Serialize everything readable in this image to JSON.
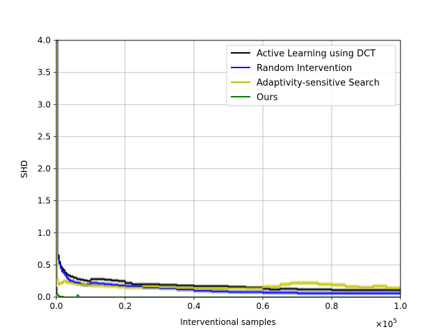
{
  "chart_data": {
    "type": "line",
    "title": "",
    "xlabel": "Interventional samples",
    "ylabel": "SHD",
    "x_offset_label": "×10",
    "x_offset_exponent": "5",
    "xlim": [
      0,
      1.0
    ],
    "ylim": [
      0,
      4.0
    ],
    "x_ticks": [
      "0.0",
      "0.2",
      "0.4",
      "0.6",
      "0.8",
      "1.0"
    ],
    "y_ticks": [
      "0.0",
      "0.5",
      "1.0",
      "1.5",
      "2.0",
      "2.5",
      "3.0",
      "3.5",
      "4.0"
    ],
    "grid": true,
    "legend_position": "top-right",
    "series": [
      {
        "name": "Active Learning using DCT",
        "color": "#000000",
        "points": [
          [
            0.0,
            4.0
          ],
          [
            0.002,
            4.0
          ],
          [
            0.004,
            0.65
          ],
          [
            0.008,
            0.55
          ],
          [
            0.012,
            0.48
          ],
          [
            0.016,
            0.45
          ],
          [
            0.02,
            0.42
          ],
          [
            0.025,
            0.38
          ],
          [
            0.03,
            0.35
          ],
          [
            0.035,
            0.34
          ],
          [
            0.04,
            0.32
          ],
          [
            0.05,
            0.3
          ],
          [
            0.06,
            0.28
          ],
          [
            0.07,
            0.27
          ],
          [
            0.08,
            0.26
          ],
          [
            0.09,
            0.25
          ],
          [
            0.1,
            0.28
          ],
          [
            0.12,
            0.28
          ],
          [
            0.14,
            0.27
          ],
          [
            0.16,
            0.26
          ],
          [
            0.18,
            0.25
          ],
          [
            0.2,
            0.22
          ],
          [
            0.22,
            0.2
          ],
          [
            0.25,
            0.2
          ],
          [
            0.3,
            0.19
          ],
          [
            0.35,
            0.18
          ],
          [
            0.4,
            0.17
          ],
          [
            0.45,
            0.17
          ],
          [
            0.5,
            0.16
          ],
          [
            0.55,
            0.15
          ],
          [
            0.6,
            0.13
          ],
          [
            0.62,
            0.12
          ],
          [
            0.65,
            0.13
          ],
          [
            0.7,
            0.12
          ],
          [
            0.75,
            0.12
          ],
          [
            0.8,
            0.11
          ],
          [
            0.9,
            0.11
          ],
          [
            1.0,
            0.11
          ]
        ],
        "band": 0.025
      },
      {
        "name": "Random Intervention",
        "color": "#0000ff",
        "points": [
          [
            0.0,
            4.0
          ],
          [
            0.002,
            4.0
          ],
          [
            0.004,
            0.6
          ],
          [
            0.008,
            0.52
          ],
          [
            0.012,
            0.45
          ],
          [
            0.016,
            0.4
          ],
          [
            0.02,
            0.38
          ],
          [
            0.025,
            0.34
          ],
          [
            0.03,
            0.3
          ],
          [
            0.035,
            0.27
          ],
          [
            0.04,
            0.25
          ],
          [
            0.05,
            0.23
          ],
          [
            0.06,
            0.22
          ],
          [
            0.07,
            0.2
          ],
          [
            0.08,
            0.19
          ],
          [
            0.09,
            0.2
          ],
          [
            0.1,
            0.22
          ],
          [
            0.12,
            0.21
          ],
          [
            0.14,
            0.2
          ],
          [
            0.16,
            0.19
          ],
          [
            0.18,
            0.18
          ],
          [
            0.2,
            0.17
          ],
          [
            0.25,
            0.15
          ],
          [
            0.3,
            0.14
          ],
          [
            0.35,
            0.12
          ],
          [
            0.4,
            0.1
          ],
          [
            0.45,
            0.09
          ],
          [
            0.5,
            0.08
          ],
          [
            0.55,
            0.08
          ],
          [
            0.6,
            0.07
          ],
          [
            0.65,
            0.07
          ],
          [
            0.7,
            0.06
          ],
          [
            0.8,
            0.06
          ],
          [
            0.9,
            0.06
          ],
          [
            1.0,
            0.06
          ]
        ],
        "band": 0.03
      },
      {
        "name": "Adaptivity-sensitive Search",
        "color": "#bfbf00",
        "points": [
          [
            0.0,
            4.0
          ],
          [
            0.002,
            4.0
          ],
          [
            0.003,
            0.3
          ],
          [
            0.005,
            0.2
          ],
          [
            0.01,
            0.22
          ],
          [
            0.02,
            0.25
          ],
          [
            0.03,
            0.23
          ],
          [
            0.04,
            0.22
          ],
          [
            0.05,
            0.21
          ],
          [
            0.06,
            0.2
          ],
          [
            0.08,
            0.19
          ],
          [
            0.1,
            0.18
          ],
          [
            0.14,
            0.17
          ],
          [
            0.18,
            0.16
          ],
          [
            0.2,
            0.15
          ],
          [
            0.25,
            0.16
          ],
          [
            0.3,
            0.15
          ],
          [
            0.35,
            0.14
          ],
          [
            0.4,
            0.13
          ],
          [
            0.45,
            0.13
          ],
          [
            0.5,
            0.14
          ],
          [
            0.55,
            0.14
          ],
          [
            0.6,
            0.16
          ],
          [
            0.65,
            0.2
          ],
          [
            0.68,
            0.22
          ],
          [
            0.72,
            0.22
          ],
          [
            0.76,
            0.2
          ],
          [
            0.8,
            0.19
          ],
          [
            0.84,
            0.16
          ],
          [
            0.88,
            0.15
          ],
          [
            0.92,
            0.17
          ],
          [
            0.96,
            0.14
          ],
          [
            1.0,
            0.14
          ]
        ],
        "band": 0.035
      },
      {
        "name": "Ours",
        "color": "#008000",
        "points": [
          [
            0.0,
            0.15
          ],
          [
            0.002,
            0.05
          ],
          [
            0.004,
            0.03
          ],
          [
            0.006,
            0.02
          ],
          [
            0.01,
            0.01
          ],
          [
            0.02,
            0.0
          ],
          [
            0.05,
            0.0
          ],
          [
            0.06,
            0.03
          ],
          [
            0.065,
            0.0
          ],
          [
            0.2,
            0.0
          ],
          [
            0.5,
            0.0
          ],
          [
            1.0,
            0.0
          ]
        ],
        "band": 0.0
      }
    ]
  }
}
